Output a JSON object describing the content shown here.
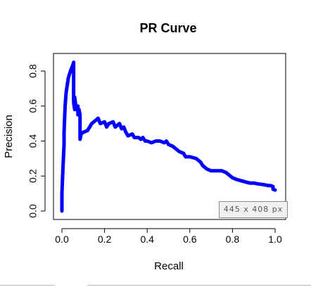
{
  "chart_data": {
    "type": "line",
    "title": "PR Curve",
    "xlabel": "Recall",
    "ylabel": "Precision",
    "xlim": [
      0,
      1
    ],
    "ylim": [
      0,
      0.85
    ],
    "x_ticks": [
      "0.0",
      "0.2",
      "0.4",
      "0.6",
      "0.8",
      "1.0"
    ],
    "y_ticks": [
      "0.0",
      "0.2",
      "0.4",
      "0.6",
      "0.8"
    ],
    "grid": false,
    "legend": "none",
    "line_color": "#0000ff",
    "series": [
      {
        "x": [
          0.0,
          0.0,
          0.005,
          0.01,
          0.01,
          0.015,
          0.02,
          0.025,
          0.03,
          0.04,
          0.05,
          0.055,
          0.055,
          0.06,
          0.06,
          0.065,
          0.07,
          0.075,
          0.075,
          0.08,
          0.085,
          0.085,
          0.09,
          0.1,
          0.12,
          0.14,
          0.16,
          0.17,
          0.18,
          0.2,
          0.21,
          0.22,
          0.24,
          0.25,
          0.27,
          0.28,
          0.29,
          0.3,
          0.31,
          0.33,
          0.34,
          0.36,
          0.37,
          0.38,
          0.39,
          0.4,
          0.42,
          0.44,
          0.46,
          0.48,
          0.49,
          0.5,
          0.52,
          0.54,
          0.55,
          0.57,
          0.58,
          0.6,
          0.63,
          0.65,
          0.66,
          0.67,
          0.68,
          0.7,
          0.71,
          0.73,
          0.75,
          0.77,
          0.78,
          0.8,
          0.82,
          0.85,
          0.88,
          0.9,
          0.92,
          0.95,
          0.97,
          0.98,
          0.99,
          0.99,
          1.0
        ],
        "y": [
          0.0,
          0.1,
          0.25,
          0.38,
          0.45,
          0.6,
          0.68,
          0.72,
          0.76,
          0.8,
          0.83,
          0.85,
          0.62,
          0.58,
          0.65,
          0.6,
          0.58,
          0.6,
          0.55,
          0.58,
          0.55,
          0.41,
          0.44,
          0.45,
          0.46,
          0.5,
          0.52,
          0.53,
          0.5,
          0.51,
          0.48,
          0.5,
          0.51,
          0.48,
          0.5,
          0.47,
          0.48,
          0.45,
          0.43,
          0.44,
          0.42,
          0.42,
          0.41,
          0.42,
          0.4,
          0.4,
          0.39,
          0.4,
          0.4,
          0.39,
          0.4,
          0.38,
          0.37,
          0.35,
          0.34,
          0.33,
          0.31,
          0.31,
          0.3,
          0.28,
          0.26,
          0.25,
          0.24,
          0.23,
          0.23,
          0.23,
          0.23,
          0.22,
          0.21,
          0.19,
          0.18,
          0.17,
          0.16,
          0.16,
          0.155,
          0.15,
          0.145,
          0.145,
          0.14,
          0.125,
          0.12
        ]
      }
    ]
  },
  "overlay": {
    "size_label": "445  x  408  px"
  }
}
